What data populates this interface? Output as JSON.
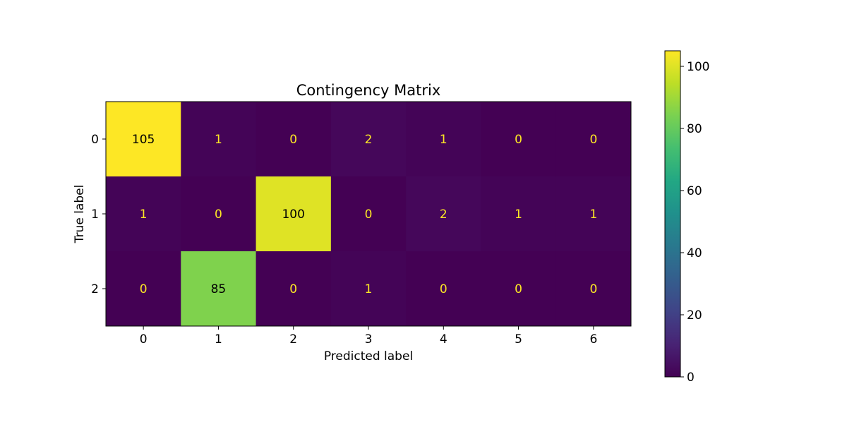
{
  "chart_data": {
    "type": "heatmap",
    "title": "Contingency Matrix",
    "xlabel": "Predicted label",
    "ylabel": "True label",
    "x_categories": [
      "0",
      "1",
      "2",
      "3",
      "4",
      "5",
      "6"
    ],
    "y_categories": [
      "0",
      "1",
      "2"
    ],
    "values": [
      [
        105,
        1,
        0,
        2,
        1,
        0,
        0
      ],
      [
        1,
        0,
        100,
        0,
        2,
        1,
        1
      ],
      [
        0,
        85,
        0,
        1,
        0,
        0,
        0
      ]
    ],
    "colormap": "viridis",
    "color_range": [
      0,
      105
    ],
    "colorbar_ticks": [
      0,
      20,
      40,
      60,
      80,
      100
    ],
    "text_colors": {
      "on_dark": "#fde725",
      "on_light": "#000000"
    }
  }
}
